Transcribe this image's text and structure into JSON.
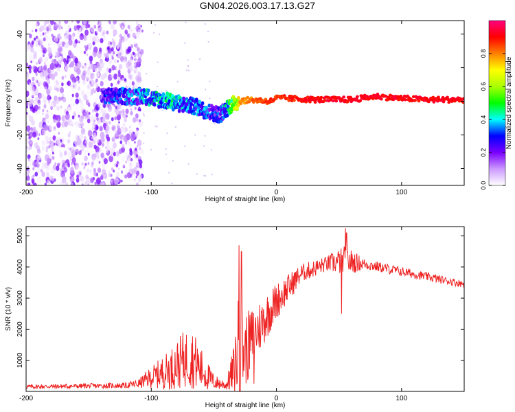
{
  "title": "GN04.2026.003.17.13.G27",
  "chart_data": [
    {
      "type": "heatmap",
      "title": "GN04.2026.003.17.13.G27",
      "xlabel": "Height of straight line (km)",
      "ylabel": "Frequency (Hz)",
      "xlim": [
        -200,
        150
      ],
      "ylim": [
        -50,
        48
      ],
      "x_ticks": [
        -200,
        -100,
        0,
        100
      ],
      "y_ticks": [
        -40,
        -20,
        0,
        20,
        40
      ],
      "colorbar": {
        "label": "Normalized spectral amplitude",
        "range": [
          0,
          1
        ],
        "ticks": [
          "0.0",
          "0.2",
          "0.4",
          "0.6",
          "0.8"
        ],
        "stops": [
          "#ffffff",
          "#cc99ff",
          "#7a00ff",
          "#0000ff",
          "#00ffff",
          "#00ff00",
          "#aaff00",
          "#ffff00",
          "#ff8000",
          "#ff0000",
          "#ff0080"
        ]
      },
      "noise_region_x": [
        -200,
        -107
      ],
      "signal_track": [
        {
          "x": -140,
          "freq": 3,
          "amp": 0.35
        },
        {
          "x": -120,
          "freq": 3,
          "amp": 0.4
        },
        {
          "x": -105,
          "freq": 3,
          "amp": 0.45
        },
        {
          "x": -95,
          "freq": 1,
          "amp": 0.5
        },
        {
          "x": -85,
          "freq": 0,
          "amp": 0.5
        },
        {
          "x": -75,
          "freq": -2,
          "amp": 0.45
        },
        {
          "x": -65,
          "freq": -3,
          "amp": 0.45
        },
        {
          "x": -55,
          "freq": -6,
          "amp": 0.4
        },
        {
          "x": -45,
          "freq": -8,
          "amp": 0.35
        },
        {
          "x": -38,
          "freq": -3,
          "amp": 0.55
        },
        {
          "x": -30,
          "freq": 0,
          "amp": 0.8
        },
        {
          "x": -20,
          "freq": 1,
          "amp": 0.85
        },
        {
          "x": -5,
          "freq": 0,
          "amp": 0.9
        },
        {
          "x": 0,
          "freq": 2,
          "amp": 0.9
        },
        {
          "x": 30,
          "freq": 1,
          "amp": 0.95
        },
        {
          "x": 60,
          "freq": 1,
          "amp": 0.95
        },
        {
          "x": 80,
          "freq": 3,
          "amp": 0.95
        },
        {
          "x": 95,
          "freq": 2,
          "amp": 0.95
        },
        {
          "x": 120,
          "freq": 1,
          "amp": 0.95
        },
        {
          "x": 150,
          "freq": 1,
          "amp": 0.95
        }
      ]
    },
    {
      "type": "line",
      "xlabel": "Height of straight line (km)",
      "ylabel": "SNR (10 * v/v)",
      "xlim": [
        -200,
        150
      ],
      "ylim": [
        0,
        5300
      ],
      "x_ticks": [
        -200,
        -100,
        0,
        100
      ],
      "y_ticks": [
        1000,
        2000,
        3000,
        4000,
        5000
      ],
      "series": [
        {
          "name": "SNR",
          "color": "#ee2222",
          "envelope": [
            {
              "x": -200,
              "mean": 150,
              "jitter": 70
            },
            {
              "x": -160,
              "mean": 170,
              "jitter": 80
            },
            {
              "x": -120,
              "mean": 190,
              "jitter": 90
            },
            {
              "x": -110,
              "mean": 250,
              "jitter": 150
            },
            {
              "x": -100,
              "mean": 450,
              "jitter": 350
            },
            {
              "x": -85,
              "mean": 700,
              "jitter": 650
            },
            {
              "x": -75,
              "mean": 1000,
              "jitter": 900
            },
            {
              "x": -68,
              "mean": 1100,
              "jitter": 1000
            },
            {
              "x": -60,
              "mean": 700,
              "jitter": 700
            },
            {
              "x": -50,
              "mean": 300,
              "jitter": 250
            },
            {
              "x": -40,
              "mean": 200,
              "jitter": 150
            },
            {
              "x": -34,
              "mean": 700,
              "jitter": 800
            },
            {
              "x": -30,
              "mean": 1500,
              "jitter": 1800
            },
            {
              "x": -25,
              "mean": 1300,
              "jitter": 1200
            },
            {
              "x": -15,
              "mean": 2000,
              "jitter": 900
            },
            {
              "x": 0,
              "mean": 2900,
              "jitter": 600
            },
            {
              "x": 20,
              "mean": 3800,
              "jitter": 300
            },
            {
              "x": 40,
              "mean": 4100,
              "jitter": 250
            },
            {
              "x": 55,
              "mean": 4200,
              "jitter": 500
            },
            {
              "x": 70,
              "mean": 4100,
              "jitter": 180
            },
            {
              "x": 100,
              "mean": 3850,
              "jitter": 150
            },
            {
              "x": 150,
              "mean": 3450,
              "jitter": 120
            }
          ],
          "peaks": [
            {
              "x": -30,
              "value": 4700
            },
            {
              "x": -28,
              "value": 4500
            },
            {
              "x": 55,
              "value": 5250
            },
            {
              "x": 56,
              "value": 5100
            },
            {
              "x": 52,
              "value": 2500
            },
            {
              "x": -18,
              "value": 250
            }
          ]
        }
      ]
    }
  ]
}
